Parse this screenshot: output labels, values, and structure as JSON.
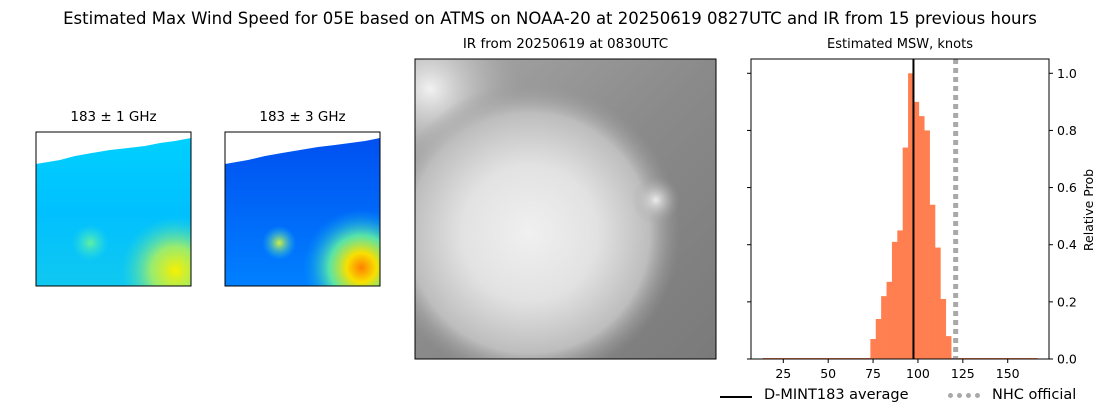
{
  "title": "Estimated Max Wind Speed for 05E based on ATMS on NOAA-20 at 20250619 0827UTC and IR from 15 previous hours",
  "panels": {
    "mw1": {
      "title": "183 ± 1 GHz"
    },
    "mw3": {
      "title": "183 ± 3 GHz"
    },
    "ir": {
      "title": "IR from 20250619 at 0830UTC"
    },
    "hist": {
      "title": "Estimated MSW, knots"
    }
  },
  "chart_data": {
    "type": "bar",
    "title": "Estimated MSW, knots",
    "xlabel": "",
    "ylabel": "Relative Prob",
    "xlim": [
      7,
      173
    ],
    "ylim": [
      0,
      1.05
    ],
    "x_ticks": [
      25,
      50,
      75,
      100,
      125,
      150
    ],
    "y_ticks": [
      0.0,
      0.2,
      0.4,
      0.6,
      0.8,
      1.0
    ],
    "y_tick_labels": [
      "0.0",
      "0.2",
      "0.4",
      "0.6",
      "0.8",
      "1.0"
    ],
    "y_axis_side": "right",
    "bin_width": 3,
    "bins": [
      {
        "x": 15,
        "value": 0.0
      },
      {
        "x": 18,
        "value": 0.0
      },
      {
        "x": 21,
        "value": 0.0
      },
      {
        "x": 24,
        "value": 0.0
      },
      {
        "x": 27,
        "value": 0.0
      },
      {
        "x": 30,
        "value": 0.0
      },
      {
        "x": 33,
        "value": 0.0
      },
      {
        "x": 36,
        "value": 0.0
      },
      {
        "x": 39,
        "value": 0.0
      },
      {
        "x": 42,
        "value": 0.0
      },
      {
        "x": 45,
        "value": 0.0
      },
      {
        "x": 48,
        "value": 0.0
      },
      {
        "x": 51,
        "value": 0.0
      },
      {
        "x": 54,
        "value": 0.0
      },
      {
        "x": 57,
        "value": 0.0
      },
      {
        "x": 60,
        "value": 0.0
      },
      {
        "x": 63,
        "value": 0.0
      },
      {
        "x": 66,
        "value": 0.0
      },
      {
        "x": 69,
        "value": 0.0
      },
      {
        "x": 72,
        "value": 0.0
      },
      {
        "x": 75,
        "value": 0.07
      },
      {
        "x": 78,
        "value": 0.14
      },
      {
        "x": 81,
        "value": 0.22
      },
      {
        "x": 84,
        "value": 0.27
      },
      {
        "x": 87,
        "value": 0.41
      },
      {
        "x": 90,
        "value": 0.45
      },
      {
        "x": 93,
        "value": 0.74
      },
      {
        "x": 96,
        "value": 1.0
      },
      {
        "x": 99,
        "value": 0.9
      },
      {
        "x": 102,
        "value": 0.85
      },
      {
        "x": 105,
        "value": 0.8
      },
      {
        "x": 108,
        "value": 0.54
      },
      {
        "x": 111,
        "value": 0.39
      },
      {
        "x": 114,
        "value": 0.21
      },
      {
        "x": 117,
        "value": 0.08
      },
      {
        "x": 120,
        "value": 0.0
      },
      {
        "x": 123,
        "value": 0.0
      },
      {
        "x": 126,
        "value": 0.0
      },
      {
        "x": 129,
        "value": 0.0
      },
      {
        "x": 132,
        "value": 0.0
      },
      {
        "x": 135,
        "value": 0.0
      },
      {
        "x": 138,
        "value": 0.0
      },
      {
        "x": 141,
        "value": 0.0
      },
      {
        "x": 144,
        "value": 0.0
      },
      {
        "x": 147,
        "value": 0.0
      },
      {
        "x": 150,
        "value": 0.0
      },
      {
        "x": 153,
        "value": 0.0
      },
      {
        "x": 156,
        "value": 0.0
      },
      {
        "x": 159,
        "value": 0.0
      },
      {
        "x": 162,
        "value": 0.0
      },
      {
        "x": 165,
        "value": 0.0
      }
    ],
    "bar_color": "#ff7f50",
    "average_line": {
      "x": 97.5,
      "label": "D-MINT183 average",
      "color": "#000000"
    },
    "official_line": {
      "x": 121,
      "label": "NHC official",
      "color": "#a9a9a9"
    },
    "legend_location": "bottom"
  }
}
